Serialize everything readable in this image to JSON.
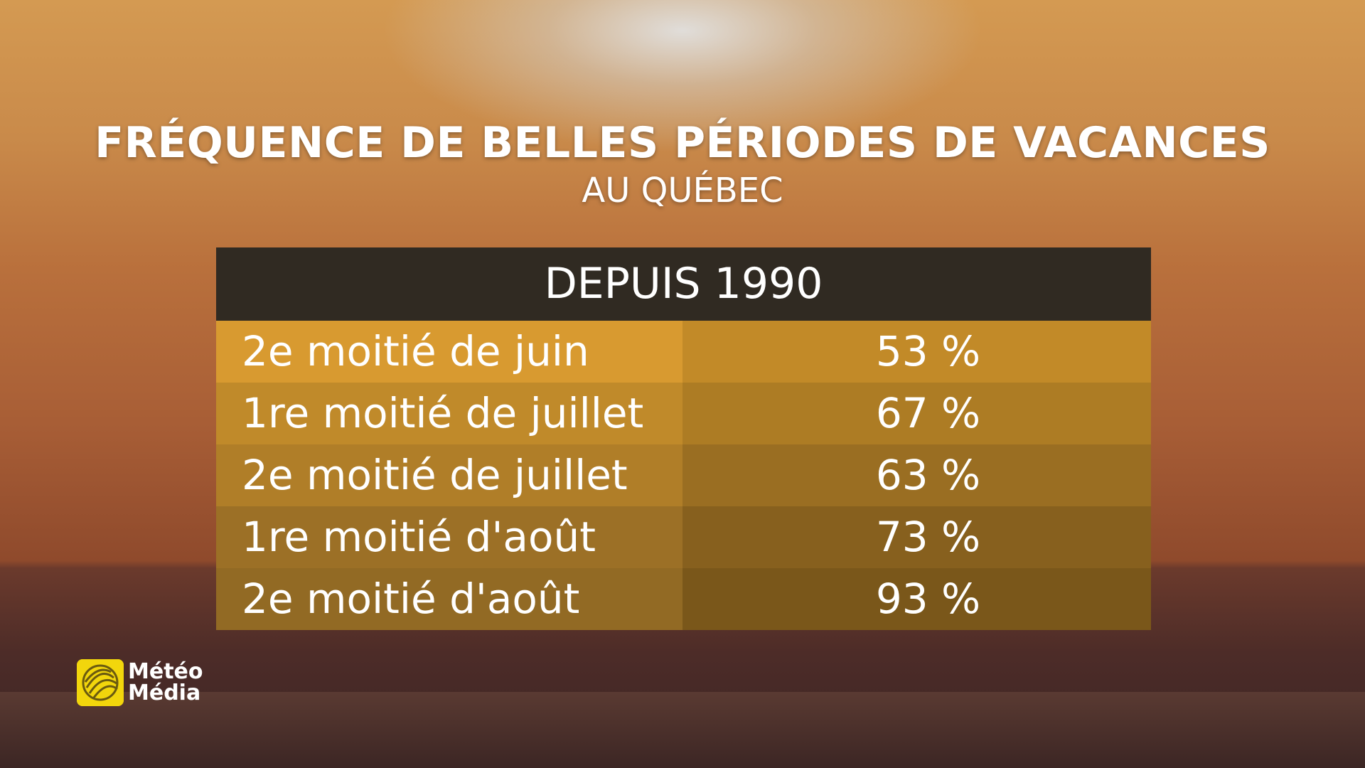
{
  "header": {
    "title": "FRÉQUENCE DE BELLES PÉRIODES DE VACANCES",
    "subtitle": "AU QUÉBEC"
  },
  "table": {
    "header": "DEPUIS 1990",
    "rows": [
      [
        "2e moitié de juin",
        "53 %"
      ],
      [
        "1re moitié de juillet",
        "67 %"
      ],
      [
        "2e moitié de juillet",
        "63 %"
      ],
      [
        "1re moitié d'août",
        "73 %"
      ],
      [
        "2e moitié d'août",
        "93 %"
      ]
    ]
  },
  "logo": {
    "lines": [
      "Météo",
      "Média"
    ]
  }
}
